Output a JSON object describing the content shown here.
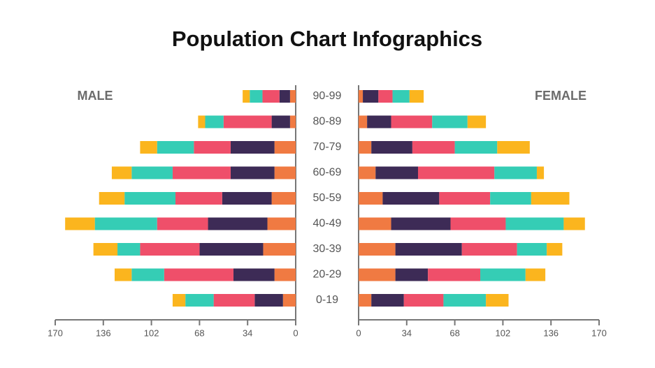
{
  "chart_data": {
    "type": "pyramid",
    "title": "Population Chart Infographics",
    "left_label": "MALE",
    "right_label": "FEMALE",
    "categories": [
      "90-99",
      "80-89",
      "70-79",
      "60-69",
      "50-59",
      "40-49",
      "30-39",
      "20-29",
      "0-19"
    ],
    "left_series": [
      {
        "color": "#f07a42",
        "values": [
          4,
          4,
          15,
          15,
          17,
          20,
          23,
          15,
          9
        ]
      },
      {
        "color": "#3d2b56",
        "values": [
          7.5,
          13,
          31,
          31,
          35,
          42,
          45,
          29,
          20
        ]
      },
      {
        "color": "#ef4f6a",
        "values": [
          12,
          34,
          26,
          41,
          33,
          36,
          42,
          49,
          29
        ]
      },
      {
        "color": "#35cdb5",
        "values": [
          9,
          13,
          26,
          29,
          36,
          44,
          16,
          23,
          20
        ]
      },
      {
        "color": "#fbb51e",
        "values": [
          5,
          5,
          12,
          14,
          18,
          21,
          17,
          12,
          9
        ]
      }
    ],
    "right_series": [
      {
        "color": "#f07a42",
        "values": [
          3,
          6,
          9,
          12,
          17,
          23,
          26,
          26,
          9
        ]
      },
      {
        "color": "#3d2b56",
        "values": [
          11,
          17,
          29,
          30,
          40,
          42,
          47,
          23,
          23
        ]
      },
      {
        "color": "#ef4f6a",
        "values": [
          10,
          29,
          30,
          54,
          36,
          39,
          39,
          37,
          28
        ]
      },
      {
        "color": "#35cdb5",
        "values": [
          12,
          25,
          30,
          30,
          29,
          41,
          21,
          32,
          30
        ]
      },
      {
        "color": "#fbb51e",
        "values": [
          10,
          13,
          23,
          5,
          27,
          15,
          11,
          14,
          16
        ]
      }
    ],
    "xlim": [
      0,
      170
    ],
    "xticks": [
      0,
      34,
      68,
      102,
      136,
      170
    ]
  }
}
